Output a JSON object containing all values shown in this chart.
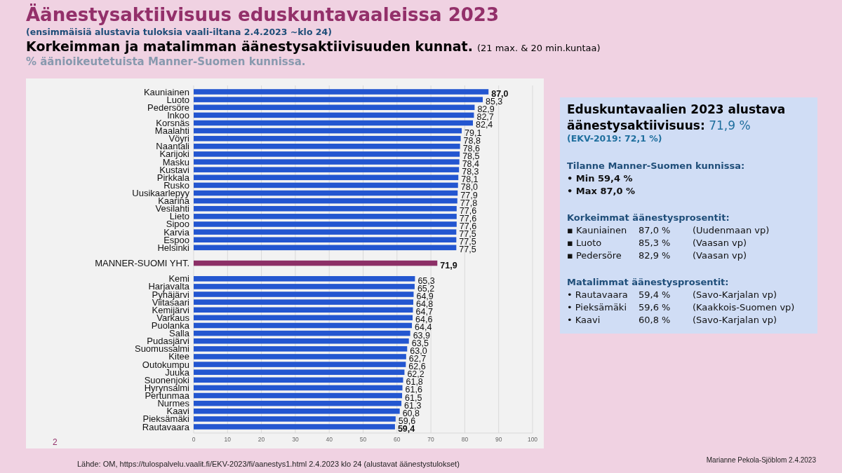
{
  "chart_data": [
    {
      "type": "bar",
      "orientation": "horizontal",
      "title": "Äänestysaktiivisuus eduskuntavaaleissa 2023",
      "subtitle": "(ensimmäisiä alustavia tuloksia vaali-iltana 2.4.2023 ~klo 24)",
      "annotations": [
        "Korkeimman ja matalimman äänestysaktiivisuuden kunnat.",
        "(21 max. & 20 min.kuntaa)",
        "% äänioikeutetuista Manner-Suomen kunnissa.",
        "2",
        "Lähde: OM, https://tulospalvelu.vaalit.fi/EKV-2023/fi/aanestys1.html    2.4.2023 klo 24  (alustavat äänestystulokset)",
        "Marianne Pekola-Sjöblom 2.4.2023"
      ],
      "categories": [
        "Kauniainen",
        "Luoto",
        "Pedersöre",
        "Inkoo",
        "Korsnäs",
        "Maalahti",
        "Vöyri",
        "Naantali",
        "Karijoki",
        "Masku",
        "Kustavi",
        "Pirkkala",
        "Rusko",
        "Uusikaarlepyy",
        "Kaarina",
        "Vesilahti",
        "Lieto",
        "Sipoo",
        "Karvia",
        "Espoo",
        "Helsinki",
        null,
        "MANNER-SUOMI YHT.",
        null,
        "Kemi",
        "Harjavalta",
        "Pyhäjärvi",
        "Viitasaari",
        "Kemijärvi",
        "Varkaus",
        "Puolanka",
        "Salla",
        "Pudasjärvi",
        "Suomussalmi",
        "Kitee",
        "Outokumpu",
        "Juuka",
        "Suonenjoki",
        "Hyrynsalmi",
        "Pertunmaa",
        "Nurmes",
        "Kaavi",
        "Pieksämäki",
        "Rautavaara"
      ],
      "values": [
        87.0,
        85.3,
        82.9,
        82.7,
        82.4,
        79.1,
        78.8,
        78.6,
        78.5,
        78.4,
        78.3,
        78.1,
        78.0,
        77.9,
        77.8,
        77.6,
        77.6,
        77.6,
        77.5,
        77.5,
        77.5,
        null,
        71.9,
        null,
        65.3,
        65.2,
        64.9,
        64.8,
        64.7,
        64.6,
        64.4,
        63.9,
        63.5,
        63.0,
        62.7,
        62.6,
        62.2,
        61.8,
        61.6,
        61.5,
        61.3,
        60.8,
        59.6,
        59.4
      ],
      "value_labels": [
        "87,0",
        "85,3",
        "82,9",
        "82,7",
        "82,4",
        "79,1",
        "78,8",
        "78,6",
        "78,5",
        "78,4",
        "78,3",
        "78,1",
        "78,0",
        "77,9",
        "77,8",
        "77,6",
        "77,6",
        "77,6",
        "77,5",
        "77,5",
        "77,5",
        null,
        "71,9",
        null,
        "65,3",
        "65,2",
        "64,9",
        "64,8",
        "64,7",
        "64,6",
        "64,4",
        "63,9",
        "63,5",
        "63,0",
        "62,7",
        "62,6",
        "62,2",
        "61,8",
        "61,6",
        "61,5",
        "61,3",
        "60,8",
        "59,6",
        "59,4"
      ],
      "colors": [
        "#2356d0",
        "#2356d0",
        "#2356d0",
        "#2356d0",
        "#2356d0",
        "#2356d0",
        "#2356d0",
        "#2356d0",
        "#2356d0",
        "#2356d0",
        "#2356d0",
        "#2356d0",
        "#2356d0",
        "#2356d0",
        "#2356d0",
        "#2356d0",
        "#2356d0",
        "#2356d0",
        "#2356d0",
        "#2356d0",
        "#2356d0",
        null,
        "#8c2f66",
        null,
        "#2356d0",
        "#2356d0",
        "#2356d0",
        "#2356d0",
        "#2356d0",
        "#2356d0",
        "#2356d0",
        "#2356d0",
        "#2356d0",
        "#2356d0",
        "#2356d0",
        "#2356d0",
        "#2356d0",
        "#2356d0",
        "#2356d0",
        "#2356d0",
        "#2356d0",
        "#2356d0",
        "#2356d0",
        "#2356d0"
      ],
      "xlim": [
        0,
        100
      ],
      "xticks": [
        0,
        10,
        20,
        30,
        40,
        50,
        60,
        70,
        80,
        90,
        100
      ],
      "grid": "x"
    },
    {
      "type": "other",
      "title": "Eduskuntavaalien 2023 alustava äänestysaktiivisuus: 71,9 %",
      "subtitle": "(EKV-2019: 72,1 %)",
      "annotations": [
        "Tilanne Manner-Suomen kunnissa:",
        "• Min 59,4 %",
        "• Max 87,0 %",
        "Korkeimmat äänestysprosentit:",
        "▪ Kauniainen\t87,0 %\t(Uudenmaan vp)",
        "▪ Luoto\t85,3 %\t(Vaasan vp)",
        "▪ Pedersöre\t82,9 %\t(Vaasan vp)",
        "Matalimmat äänestysprosentit:",
        "• Rautavaara\t59,4 %\t(Savo-Karjalan vp)",
        "• Pieksämäki\t59,6 %\t(Kaakkois-Suomen vp)",
        "• Kaavi\t60,8 %\t(Savo-Karjalan vp)"
      ]
    }
  ]
}
